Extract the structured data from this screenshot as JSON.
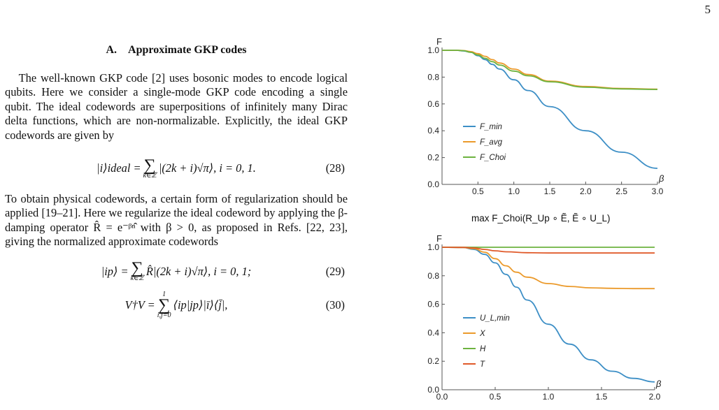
{
  "page_number": "5",
  "section": {
    "title": "A. Approximate GKP codes"
  },
  "paragraphs": {
    "p1": "The well-known GKP code [2] uses bosonic modes to encode logical qubits. Here we consider a single-mode GKP code encoding a single qubit. The ideal codewords are superpositions of infinitely many Dirac delta functions, which are non-normalizable. Explicitly, the ideal GKP codewords are given by",
    "p2": "To obtain physical codewords, a certain form of regularization should be applied [19–21]. Here we regularize the ideal codeword by applying the β-damping operator R̂ = e⁻ᵝⁿ̂ with β > 0, as proposed in Refs. [22, 23], giving the normalized approximate codewords"
  },
  "equations": {
    "eq28": {
      "lhs": "|i⟩ideal =",
      "body": "|(2k + i)√π⟩, i = 0, 1.",
      "sum_lower": "k∈ℤ",
      "number": "(28)"
    },
    "eq29": {
      "lhs": "|ip⟩ =",
      "body": "R̂|(2k + i)√π⟩, i = 0, 1;",
      "sum_lower": "k∈ℤ",
      "number": "(29)"
    },
    "eq30": {
      "lhs": "V†V =",
      "body": "⟨ip|jp⟩|ī⟩⟨j̄|,",
      "sum_lower": "i,j=0",
      "sum_upper": "1",
      "number": "(30)"
    }
  },
  "middle_caption": "max F_Choi(R_Up ∘ Ẽ, Ẽ ∘ U_L)",
  "colors": {
    "blue": "#3d8fc6",
    "orange": "#eb9a2b",
    "green": "#6db33f",
    "red": "#e05a2a"
  },
  "chart_data": [
    {
      "type": "line",
      "ylabel": "F",
      "xlabel": "β",
      "xlim": [
        0,
        3.0
      ],
      "ylim": [
        0.0,
        1.0
      ],
      "x_ticks": [
        "0.5",
        "1.0",
        "1.5",
        "2.0",
        "2.5",
        "3.0"
      ],
      "y_ticks": [
        "0.0",
        "0.2",
        "0.4",
        "0.6",
        "0.8",
        "1.0"
      ],
      "legend_position": "left-middle",
      "series": [
        {
          "name": "F_min",
          "color": "#3d8fc6",
          "x": [
            0,
            0.2,
            0.3,
            0.4,
            0.5,
            0.6,
            0.7,
            0.8,
            1.0,
            1.2,
            1.5,
            2.0,
            2.5,
            3.0
          ],
          "y": [
            1.0,
            1.0,
            0.995,
            0.985,
            0.96,
            0.93,
            0.895,
            0.86,
            0.78,
            0.7,
            0.58,
            0.4,
            0.24,
            0.12
          ]
        },
        {
          "name": "F_avg",
          "color": "#eb9a2b",
          "x": [
            0,
            0.2,
            0.3,
            0.4,
            0.5,
            0.6,
            0.7,
            0.8,
            1.0,
            1.2,
            1.5,
            2.0,
            2.5,
            3.0
          ],
          "y": [
            1.0,
            1.0,
            0.998,
            0.99,
            0.975,
            0.955,
            0.93,
            0.905,
            0.86,
            0.82,
            0.77,
            0.73,
            0.715,
            0.71
          ]
        },
        {
          "name": "F_Choi",
          "color": "#6db33f",
          "x": [
            0,
            0.2,
            0.3,
            0.4,
            0.5,
            0.6,
            0.7,
            0.8,
            1.0,
            1.2,
            1.5,
            2.0,
            2.5,
            3.0
          ],
          "y": [
            1.0,
            1.0,
            0.997,
            0.985,
            0.965,
            0.94,
            0.915,
            0.89,
            0.845,
            0.81,
            0.765,
            0.725,
            0.712,
            0.708
          ]
        }
      ]
    },
    {
      "type": "line",
      "ylabel": "F",
      "xlabel": "β",
      "xlim": [
        0,
        2.0
      ],
      "ylim": [
        0.0,
        1.0
      ],
      "x_ticks": [
        "0.0",
        "0.5",
        "1.0",
        "1.5",
        "2.0"
      ],
      "y_ticks": [
        "0.0",
        "0.2",
        "0.4",
        "0.6",
        "0.8",
        "1.0"
      ],
      "legend_position": "left-middle",
      "series": [
        {
          "name": "U_L,min",
          "color": "#3d8fc6",
          "x": [
            0,
            0.2,
            0.3,
            0.4,
            0.5,
            0.6,
            0.7,
            0.8,
            1.0,
            1.2,
            1.4,
            1.6,
            1.8,
            2.0
          ],
          "y": [
            1.0,
            0.998,
            0.985,
            0.95,
            0.89,
            0.81,
            0.72,
            0.63,
            0.46,
            0.32,
            0.21,
            0.13,
            0.08,
            0.055
          ]
        },
        {
          "name": "X",
          "color": "#eb9a2b",
          "x": [
            0,
            0.2,
            0.3,
            0.4,
            0.5,
            0.6,
            0.7,
            0.8,
            1.0,
            1.2,
            1.4,
            1.6,
            1.8,
            2.0
          ],
          "y": [
            1.0,
            0.998,
            0.99,
            0.965,
            0.92,
            0.87,
            0.825,
            0.79,
            0.745,
            0.725,
            0.715,
            0.712,
            0.71,
            0.71
          ]
        },
        {
          "name": "H",
          "color": "#6db33f",
          "x": [
            0,
            0.5,
            1.0,
            1.5,
            2.0
          ],
          "y": [
            1.0,
            1.0,
            1.0,
            1.0,
            1.0
          ]
        },
        {
          "name": "T",
          "color": "#e05a2a",
          "x": [
            0,
            0.2,
            0.3,
            0.4,
            0.5,
            0.6,
            0.8,
            1.0,
            1.5,
            2.0
          ],
          "y": [
            1.0,
            0.999,
            0.995,
            0.985,
            0.975,
            0.968,
            0.962,
            0.96,
            0.96,
            0.96
          ]
        }
      ]
    }
  ]
}
